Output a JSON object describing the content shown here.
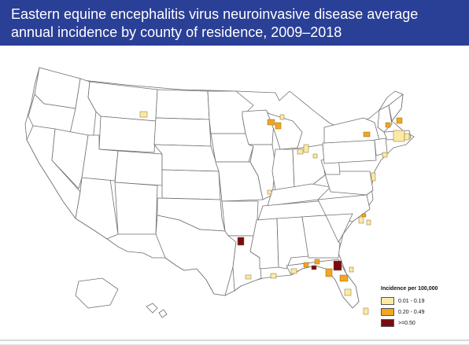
{
  "title": "Eastern equine encephalitis virus neuroinvasive disease average annual incidence by county of residence, 2009–2018",
  "colors": {
    "header_bg": "#2a3f96",
    "header_text": "#ffffff",
    "low": "#fbeaa6",
    "medium": "#f3a51f",
    "high": "#7a0b12",
    "state_border": "#6f6f6f"
  },
  "legend": {
    "title": "Incidence per 100,000",
    "items": [
      {
        "label": "0.01 - 0.19",
        "color": "#fbeaa6"
      },
      {
        "label": "0.20 - 0.49",
        "color": "#f3a51f"
      },
      {
        "label": ">=0.50",
        "color": "#7a0b12"
      }
    ]
  }
}
